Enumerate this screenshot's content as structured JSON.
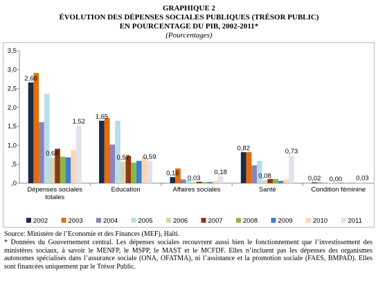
{
  "chart_data": {
    "type": "bar",
    "label": "GRAPHIQUE 2",
    "title": "ÉVOLUTION DES DÉPENSES SOCIALES PUBLIQUES (TRÉSOR PUBLIC)",
    "title_line2": "EN POURCENTAGE DU PIB, 2002-2011*",
    "subtitle": "(Pourcentages)",
    "categories": [
      "Dépenses sociales totales",
      "Education",
      "Affaires sociales",
      "Santé",
      "Condition féminine"
    ],
    "ylim": [
      0,
      3.5
    ],
    "yticks": [
      {
        "value": 0,
        "label": ",0"
      },
      {
        "value": 0.5,
        "label": ",5"
      },
      {
        "value": 1,
        "label": "1,0"
      },
      {
        "value": 1.5,
        "label": "1,5"
      },
      {
        "value": 2,
        "label": "2,0"
      },
      {
        "value": 2.5,
        "label": "2,5"
      },
      {
        "value": 3,
        "label": "3,0"
      },
      {
        "value": 3.5,
        "label": "3,5"
      }
    ],
    "grid": false,
    "legend": "bottom",
    "series": [
      {
        "name": "2002",
        "color": "#1b2a47",
        "values": [
          2.66,
          1.65,
          0.16,
          0.82,
          0.02
        ],
        "value_labels": [
          "2,66",
          "1,65",
          "0,16",
          "0,82",
          "0,02"
        ]
      },
      {
        "name": "2003",
        "color": "#e46c0a",
        "values": [
          2.91,
          1.72,
          0.39,
          0.82,
          0.02
        ]
      },
      {
        "name": "2004",
        "color": "#8e82b9",
        "values": [
          1.61,
          1.02,
          0.1,
          0.47,
          0.01
        ]
      },
      {
        "name": "2005",
        "color": "#b7dee8",
        "values": [
          2.36,
          1.65,
          0.09,
          0.59,
          0.01
        ]
      },
      {
        "name": "2006",
        "color": "#d9d3b4",
        "values": [
          0.68,
          0.57,
          0.03,
          0.08,
          0.0
        ],
        "value_labels": [
          "0,68",
          "0,57",
          "0,03",
          "0,08",
          "0,00"
        ]
      },
      {
        "name": "2007",
        "color": "#8b3a0e",
        "values": [
          0.91,
          0.72,
          0.04,
          0.11,
          0.01
        ]
      },
      {
        "name": "2008",
        "color": "#8cb74a",
        "values": [
          0.7,
          0.54,
          0.03,
          0.11,
          0.01
        ]
      },
      {
        "name": "2009",
        "color": "#3f7fd0",
        "values": [
          0.68,
          0.59,
          0.03,
          0.06,
          0.01
        ]
      },
      {
        "name": "2010",
        "color": "#fcd5b5",
        "values": [
          0.87,
          0.7,
          0.06,
          0.1,
          0.02
        ]
      },
      {
        "name": "2011",
        "color": "#e6e0ec",
        "values": [
          1.52,
          0.59,
          0.18,
          0.73,
          0.03
        ],
        "value_labels": [
          "1,52",
          "0,59",
          "0,18",
          "0,73",
          "0,03"
        ]
      }
    ]
  },
  "source": "Source: Ministère de l’Economie et des Finances (MEF), Haïti.",
  "footnote": "* Données du Gouvernement central. Les dépenses sociales recouvrent aussi bien le fonctionnement que l’investissement des ministères sociaux, à savoir le MENFP, le MSPP, le MAST et le MCFDF. Elles n’incluent pas les dépenses des organismes autonomes spécialisés dans l’assurance sociale (ONA, OFATMA), ni l’assistance et la promotion sociale (FAES, BMPAD). Elles sont financées uniquement par le Trésor Public."
}
